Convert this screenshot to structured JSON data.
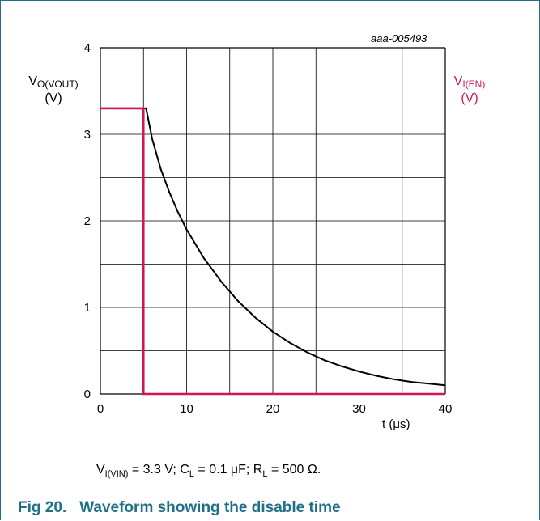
{
  "caption": {
    "number": "Fig 20.",
    "text": "Waveform showing the disable time"
  },
  "conditions": {
    "vin_sym": "V",
    "vin_sub": "I(VIN)",
    "vin_val": " = 3.3 V; ",
    "cl_sym": "C",
    "cl_sub": "L",
    "cl_val": " = 0.1 μF; ",
    "rl_sym": "R",
    "rl_sub": "L",
    "rl_val": " = 500 Ω."
  },
  "chart_data": {
    "type": "line",
    "title": "",
    "annotation": "aaa-005493",
    "xlabel": "t (μs)",
    "xlim": [
      0,
      40
    ],
    "ylim": [
      0,
      4
    ],
    "x_ticks": [
      "0",
      "10",
      "20",
      "30",
      "40"
    ],
    "y_ticks": [
      "0",
      "1",
      "2",
      "3",
      "4"
    ],
    "grid": true,
    "ylabel_left": {
      "sym": "V",
      "sub": "O(VOUT)",
      "unit": "(V)"
    },
    "ylabel_right": {
      "sym": "V",
      "sub": "I(EN)",
      "unit": "(V)"
    },
    "series": [
      {
        "name": "VO(VOUT)",
        "color": "#000000",
        "x": [
          0,
          5.3,
          6,
          7,
          8,
          9,
          10,
          12,
          14,
          16,
          18,
          20,
          22,
          24,
          26,
          28,
          30,
          32,
          34,
          36,
          38,
          40
        ],
        "y": [
          3.3,
          3.3,
          2.95,
          2.6,
          2.33,
          2.1,
          1.9,
          1.57,
          1.3,
          1.07,
          0.88,
          0.72,
          0.59,
          0.48,
          0.39,
          0.32,
          0.26,
          0.21,
          0.17,
          0.14,
          0.12,
          0.1
        ]
      },
      {
        "name": "VI(EN)",
        "color": "#d4145a",
        "x": [
          0,
          5,
          5,
          40
        ],
        "y": [
          3.3,
          3.3,
          0,
          0
        ]
      }
    ]
  }
}
